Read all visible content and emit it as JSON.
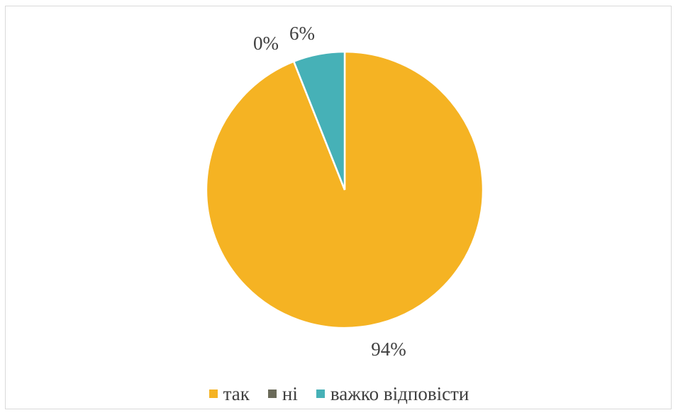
{
  "chart_data": {
    "type": "pie",
    "title": "",
    "slices": [
      {
        "label": "так",
        "value": 94,
        "display": "94%",
        "color": "#F5B323"
      },
      {
        "label": "ні",
        "value": 0,
        "display": "0%",
        "color": "#6B6B5A"
      },
      {
        "label": "важко відповісти",
        "value": 6,
        "display": "6%",
        "color": "#46B1B7"
      }
    ],
    "legend_position": "bottom"
  }
}
